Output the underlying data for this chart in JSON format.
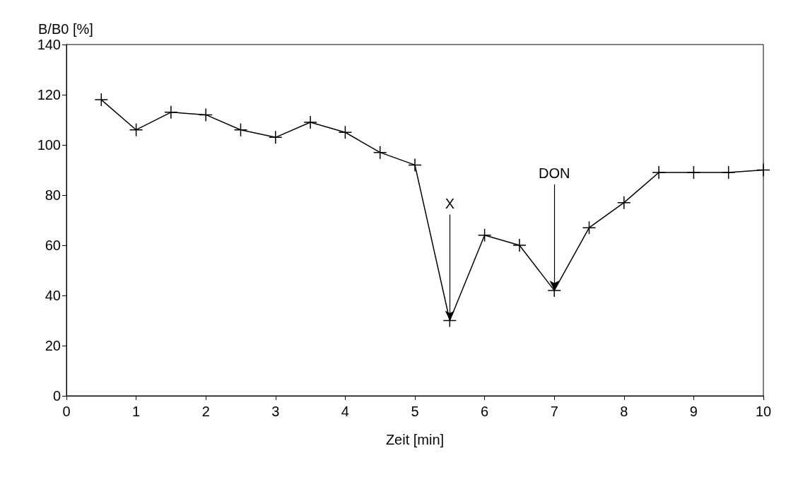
{
  "chart_data": {
    "type": "line",
    "xlabel": "Zeit [min]",
    "ylabel": "B/B0 [%]",
    "x": [
      0.5,
      1,
      1.5,
      2,
      2.5,
      3,
      3.5,
      4,
      4.5,
      5,
      5.5,
      6,
      6.5,
      7,
      7.5,
      8,
      8.5,
      9,
      9.5,
      10
    ],
    "values": [
      118,
      106,
      113,
      112,
      106,
      103,
      109,
      105,
      97,
      92,
      30,
      64,
      60,
      42,
      67,
      77,
      89,
      89,
      89,
      90
    ],
    "color": "#000000",
    "marker": "cross",
    "line_style": "solid",
    "xlim": [
      0,
      10
    ],
    "xticks": [
      0,
      1,
      2,
      3,
      4,
      5,
      6,
      7,
      8,
      9,
      10
    ],
    "ylim": [
      0,
      140
    ],
    "yticks": [
      0,
      20,
      40,
      60,
      80,
      100,
      120,
      140
    ],
    "grid": false,
    "annotations": [
      {
        "text": "X",
        "x": 5.5,
        "y": 30
      },
      {
        "text": "DON",
        "x": 7,
        "y": 42
      }
    ]
  }
}
